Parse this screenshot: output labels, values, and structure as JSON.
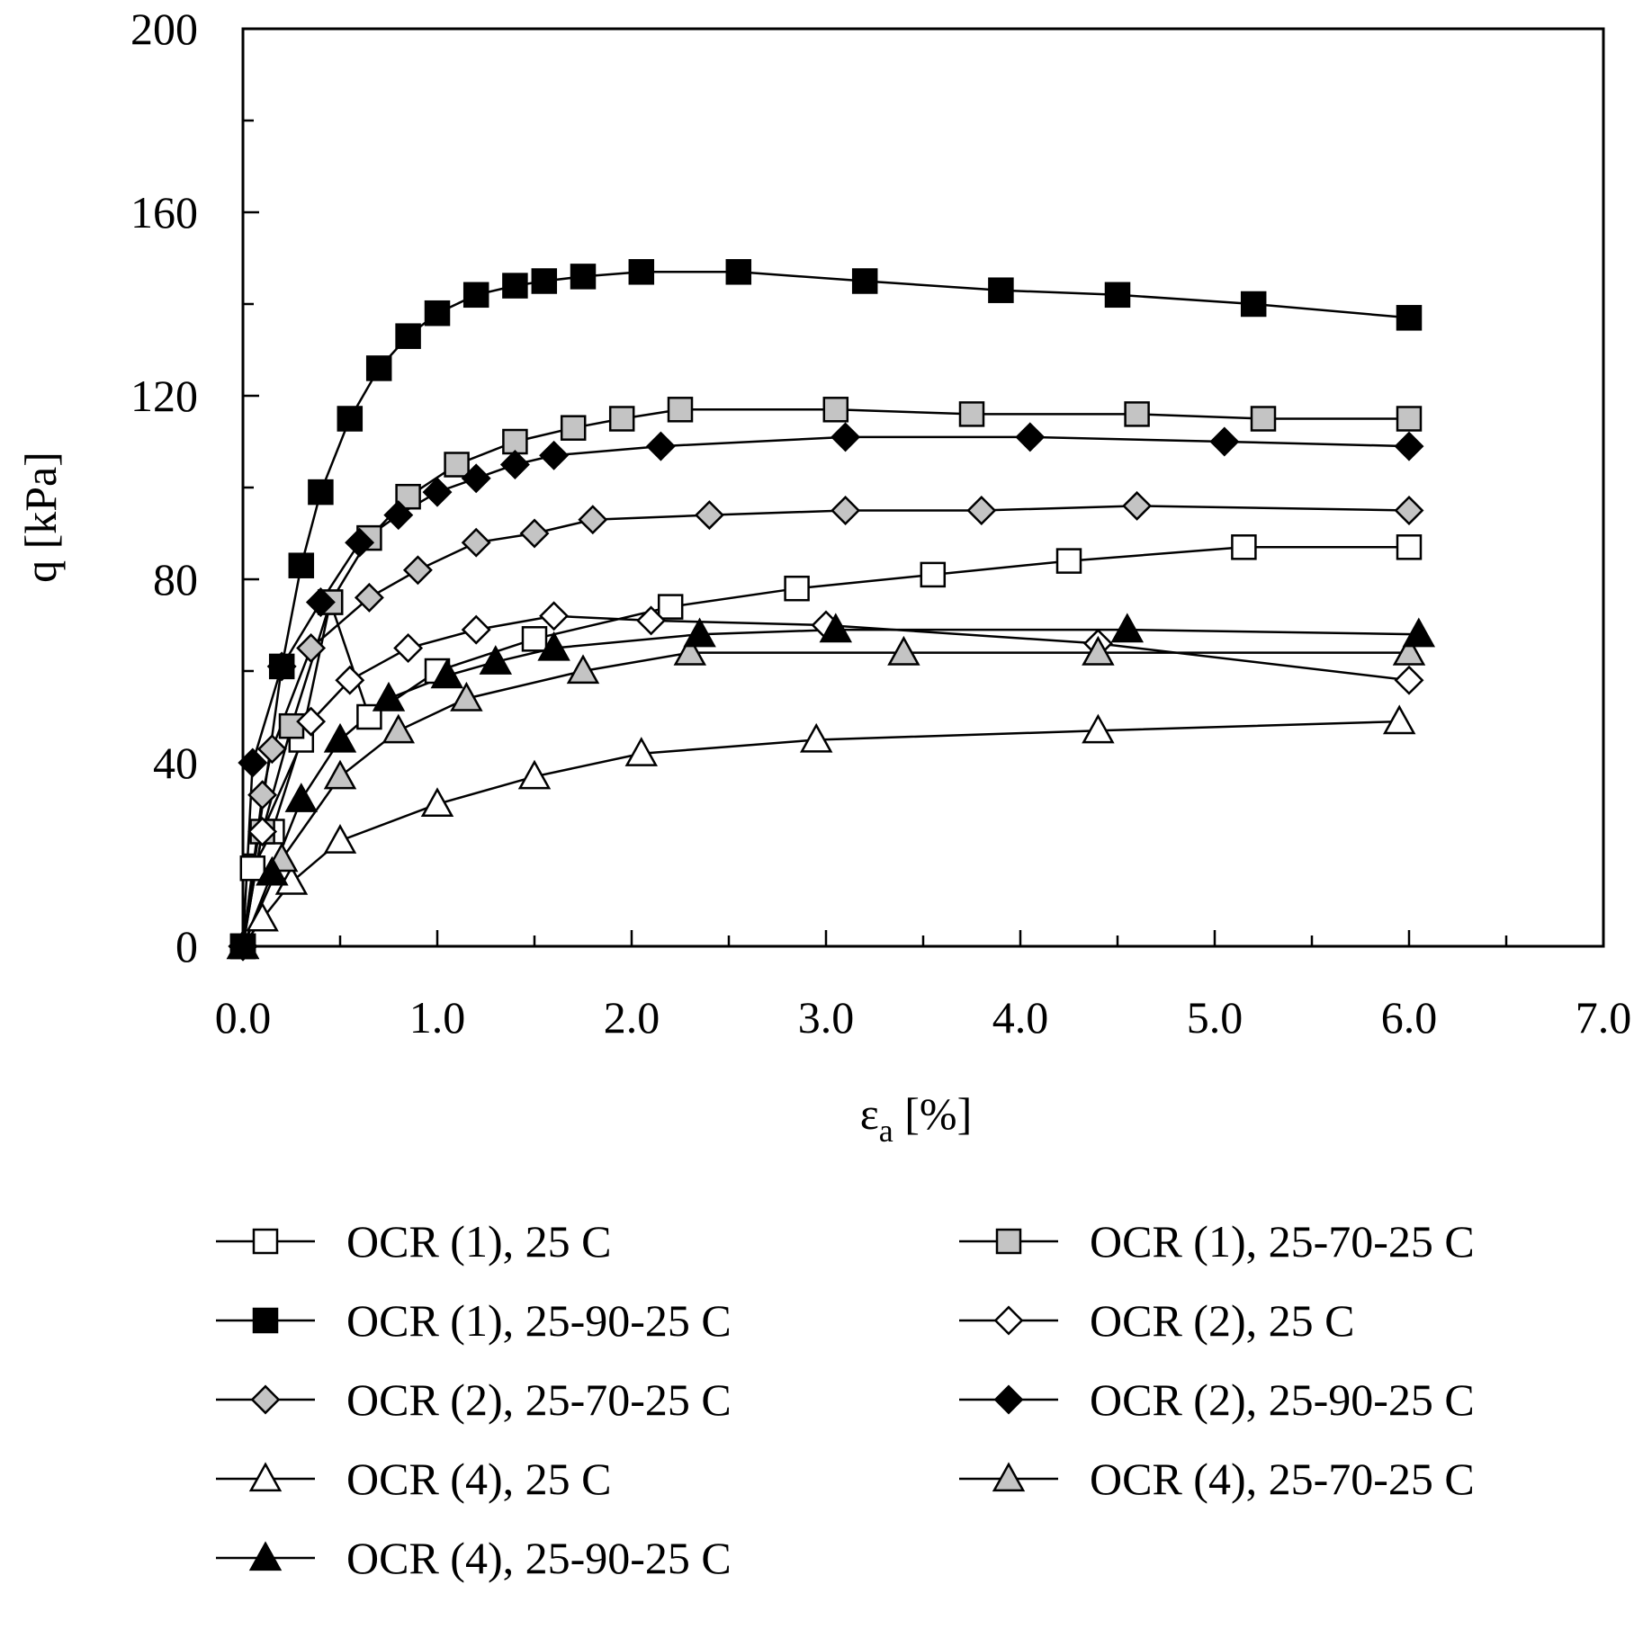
{
  "chart_data": {
    "type": "line",
    "xlabel_main": "ε",
    "xlabel_sub": "a",
    "xlabel_rest": " [%]",
    "ylabel": "q [kPa]",
    "xlim": [
      0,
      7
    ],
    "ylim": [
      0,
      200
    ],
    "x_ticks": [
      "0.0",
      "1.0",
      "2.0",
      "3.0",
      "4.0",
      "5.0",
      "6.0",
      "7.0"
    ],
    "y_ticks": [
      "0",
      "40",
      "80",
      "120",
      "160",
      "200"
    ],
    "series": [
      {
        "name": "OCR (1), 25 C",
        "marker": "square",
        "fill": "white",
        "points": [
          [
            0,
            0
          ],
          [
            0.05,
            17
          ],
          [
            0.15,
            25
          ],
          [
            0.3,
            45
          ],
          [
            0.45,
            75
          ],
          [
            0.65,
            50
          ],
          [
            1.0,
            60
          ],
          [
            1.5,
            67
          ],
          [
            2.2,
            74
          ],
          [
            2.85,
            78
          ],
          [
            3.55,
            81
          ],
          [
            4.25,
            84
          ],
          [
            5.15,
            87
          ],
          [
            6.0,
            87
          ]
        ]
      },
      {
        "name": "OCR (1), 25-70-25 C",
        "marker": "square",
        "fill": "gray",
        "points": [
          [
            0,
            0
          ],
          [
            0.1,
            25
          ],
          [
            0.25,
            48
          ],
          [
            0.45,
            75
          ],
          [
            0.65,
            89
          ],
          [
            0.85,
            98
          ],
          [
            1.1,
            105
          ],
          [
            1.4,
            110
          ],
          [
            1.7,
            113
          ],
          [
            1.95,
            115
          ],
          [
            2.25,
            117
          ],
          [
            3.05,
            117
          ],
          [
            3.75,
            116
          ],
          [
            4.6,
            116
          ],
          [
            5.25,
            115
          ],
          [
            6.0,
            115
          ]
        ]
      },
      {
        "name": "OCR (1), 25-90-25 C",
        "marker": "square",
        "fill": "black",
        "points": [
          [
            0,
            0
          ],
          [
            0.2,
            61
          ],
          [
            0.3,
            83
          ],
          [
            0.4,
            99
          ],
          [
            0.55,
            115
          ],
          [
            0.7,
            126
          ],
          [
            0.85,
            133
          ],
          [
            1.0,
            138
          ],
          [
            1.2,
            142
          ],
          [
            1.4,
            144
          ],
          [
            1.55,
            145
          ],
          [
            1.75,
            146
          ],
          [
            2.05,
            147
          ],
          [
            2.55,
            147
          ],
          [
            3.2,
            145
          ],
          [
            3.9,
            143
          ],
          [
            4.5,
            142
          ],
          [
            5.2,
            140
          ],
          [
            6.0,
            137
          ]
        ]
      },
      {
        "name": "OCR (2), 25 C",
        "marker": "diamond",
        "fill": "white",
        "points": [
          [
            0,
            0
          ],
          [
            0.1,
            25
          ],
          [
            0.35,
            49
          ],
          [
            0.55,
            58
          ],
          [
            0.85,
            65
          ],
          [
            1.2,
            69
          ],
          [
            1.6,
            72
          ],
          [
            2.1,
            71
          ],
          [
            3.0,
            70
          ],
          [
            4.4,
            66
          ],
          [
            6.0,
            58
          ]
        ]
      },
      {
        "name": "OCR (2), 25-70-25 C",
        "marker": "diamond",
        "fill": "gray",
        "points": [
          [
            0,
            0
          ],
          [
            0.1,
            33
          ],
          [
            0.15,
            43
          ],
          [
            0.35,
            65
          ],
          [
            0.65,
            76
          ],
          [
            0.9,
            82
          ],
          [
            1.2,
            88
          ],
          [
            1.5,
            90
          ],
          [
            1.8,
            93
          ],
          [
            2.4,
            94
          ],
          [
            3.1,
            95
          ],
          [
            3.8,
            95
          ],
          [
            4.6,
            96
          ],
          [
            6.0,
            95
          ]
        ]
      },
      {
        "name": "OCR (2), 25-90-25 C",
        "marker": "diamond",
        "fill": "black",
        "points": [
          [
            0,
            0
          ],
          [
            0.05,
            40
          ],
          [
            0.2,
            61
          ],
          [
            0.4,
            75
          ],
          [
            0.6,
            88
          ],
          [
            0.8,
            94
          ],
          [
            1.0,
            99
          ],
          [
            1.2,
            102
          ],
          [
            1.4,
            105
          ],
          [
            1.6,
            107
          ],
          [
            2.15,
            109
          ],
          [
            3.1,
            111
          ],
          [
            4.05,
            111
          ],
          [
            5.05,
            110
          ],
          [
            6.0,
            109
          ]
        ]
      },
      {
        "name": "OCR (4), 25 C",
        "marker": "triangle",
        "fill": "white",
        "points": [
          [
            0,
            0
          ],
          [
            0.1,
            6
          ],
          [
            0.25,
            14
          ],
          [
            0.5,
            23
          ],
          [
            1.0,
            31
          ],
          [
            1.5,
            37
          ],
          [
            2.05,
            42
          ],
          [
            2.95,
            45
          ],
          [
            4.4,
            47
          ],
          [
            5.95,
            49
          ]
        ]
      },
      {
        "name": "OCR (4), 25-70-25 C",
        "marker": "triangle",
        "fill": "gray",
        "points": [
          [
            0,
            0
          ],
          [
            0.2,
            19
          ],
          [
            0.5,
            37
          ],
          [
            0.8,
            47
          ],
          [
            1.15,
            54
          ],
          [
            1.75,
            60
          ],
          [
            2.3,
            64
          ],
          [
            3.4,
            64
          ],
          [
            4.4,
            64
          ],
          [
            6.0,
            64
          ]
        ]
      },
      {
        "name": "OCR (4), 25-90-25 C",
        "marker": "triangle",
        "fill": "black",
        "points": [
          [
            0,
            0
          ],
          [
            0.15,
            16
          ],
          [
            0.3,
            32
          ],
          [
            0.5,
            45
          ],
          [
            0.75,
            54
          ],
          [
            1.05,
            59
          ],
          [
            1.3,
            62
          ],
          [
            1.6,
            65
          ],
          [
            2.35,
            68
          ],
          [
            3.05,
            69
          ],
          [
            4.55,
            69
          ],
          [
            6.05,
            68
          ]
        ]
      }
    ]
  }
}
